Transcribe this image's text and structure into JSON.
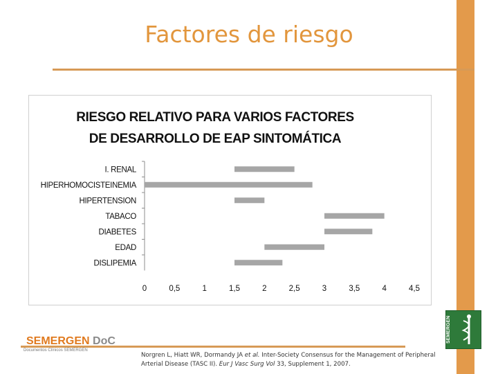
{
  "slide": {
    "title": "Factores de riesgo"
  },
  "chart_data": {
    "type": "bar",
    "orientation": "horizontal-floating",
    "title_lines": [
      "RIESGO RELATIVO PARA VARIOS FACTORES",
      "DE DESARROLLO DE EAP SINTOMÁTICA"
    ],
    "categories": [
      "I. RENAL",
      "HIPERHOMOCISTEINEMIA",
      "HIPERTENSION",
      "TABACO",
      "DIABETES",
      "EDAD",
      "DISLIPEMIA"
    ],
    "ranges": [
      [
        1.5,
        2.5
      ],
      [
        0.0,
        2.8
      ],
      [
        1.5,
        2.0
      ],
      [
        3.0,
        4.0
      ],
      [
        3.0,
        3.8
      ],
      [
        2.0,
        3.0
      ],
      [
        1.5,
        2.3
      ]
    ],
    "x_ticks": [
      "0",
      "0,5",
      "1",
      "1,5",
      "2",
      "2,5",
      "3",
      "3,5",
      "4",
      "4,5"
    ],
    "xlim": [
      0,
      4.5
    ],
    "bar_color": "#a6a6a6",
    "grid": false
  },
  "footer": {
    "logo_main": "SEMERGEN",
    "logo_doc": " DoC",
    "logo_sub": "Documentos Clínicos SEMERGEN",
    "citation_pre": "Norgren L, Hiatt WR, Dormandy JA ",
    "citation_etal": "et al.",
    "citation_mid": " Inter-Society Consensus for the Management of Peripheral Arterial Disease (TASC II). ",
    "citation_journal": "Eur J Vasc Surg Vol",
    "citation_post": " 33, Supplement 1, 2007.",
    "seal_text": "SEMERGEN"
  },
  "colors": {
    "accent": "#e39a4b",
    "title": "#e2963d"
  }
}
